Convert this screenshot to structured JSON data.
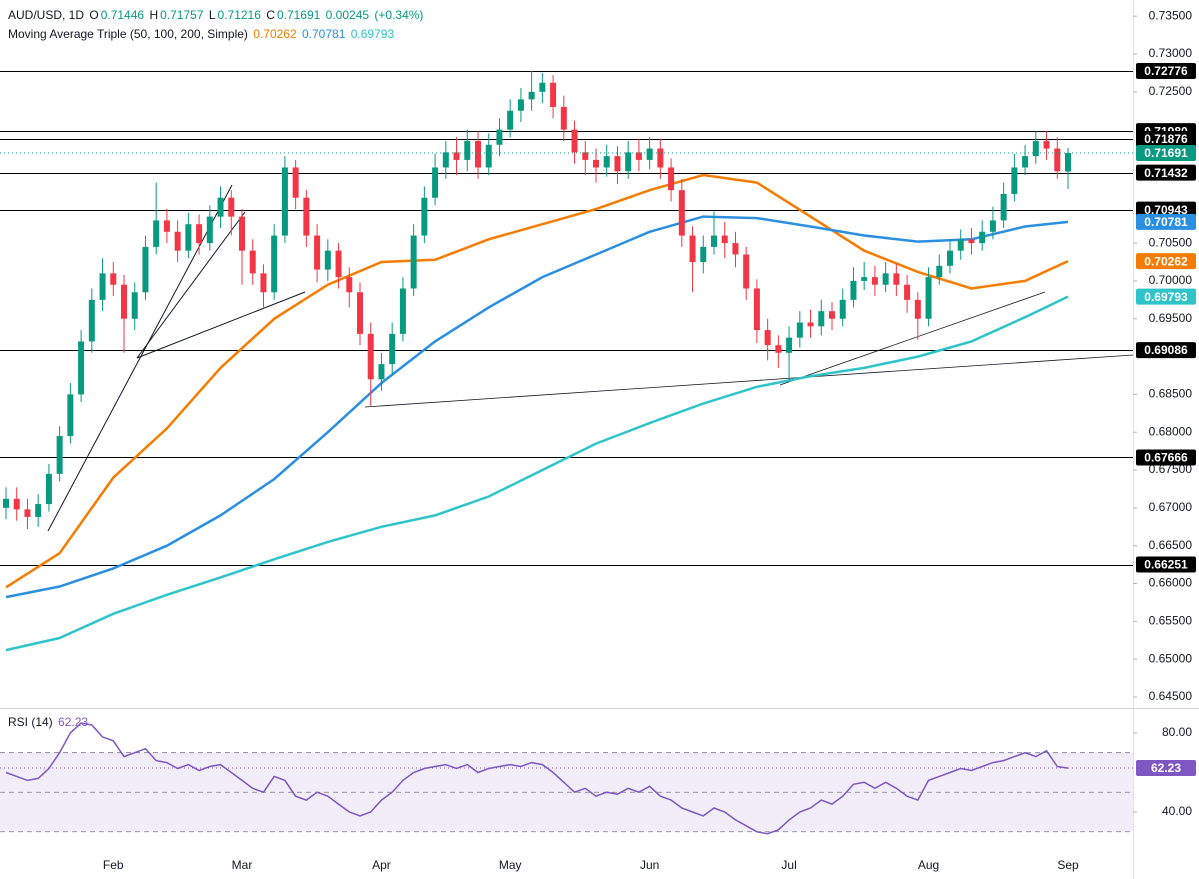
{
  "chart_data": [
    {
      "type": "candlestick",
      "title": "AUD/USD, 1D",
      "ohlc_labels": [
        "O",
        "H",
        "L",
        "C"
      ],
      "change": 0.00245,
      "change_label": "(+0.34%)",
      "categories": [
        null,
        null,
        null,
        null,
        null,
        null,
        null,
        null,
        null,
        null,
        "Feb",
        null,
        null,
        null,
        null,
        null,
        null,
        null,
        null,
        null,
        null,
        null,
        "Mar",
        null,
        null,
        null,
        null,
        null,
        null,
        null,
        null,
        null,
        null,
        null,
        null,
        "Apr",
        null,
        null,
        null,
        null,
        null,
        null,
        null,
        null,
        null,
        null,
        null,
        "May",
        null,
        null,
        null,
        null,
        null,
        null,
        null,
        null,
        null,
        null,
        null,
        null,
        "Jun",
        null,
        null,
        null,
        null,
        null,
        null,
        null,
        null,
        null,
        null,
        null,
        null,
        "Jul",
        null,
        null,
        null,
        null,
        null,
        null,
        null,
        null,
        null,
        null,
        null,
        null,
        "Aug",
        null,
        null,
        null,
        null,
        null,
        null,
        null,
        null,
        null,
        null,
        null,
        null,
        "Sep"
      ],
      "open": [
        0.67,
        0.6712,
        0.6698,
        0.6688,
        0.6705,
        0.6745,
        0.6795,
        0.685,
        0.692,
        0.6975,
        0.701,
        0.6995,
        0.695,
        0.6985,
        0.7045,
        0.708,
        0.7065,
        0.704,
        0.7075,
        0.705,
        0.7085,
        0.711,
        0.7085,
        0.704,
        0.701,
        0.6985,
        0.706,
        0.715,
        0.711,
        0.706,
        0.7015,
        0.704,
        0.7005,
        0.6985,
        0.693,
        0.687,
        0.689,
        0.693,
        0.699,
        0.706,
        0.711,
        0.715,
        0.717,
        0.716,
        0.7185,
        0.715,
        0.718,
        0.72,
        0.7225,
        0.724,
        0.725,
        0.7262,
        0.723,
        0.72,
        0.717,
        0.716,
        0.715,
        0.7165,
        0.7145,
        0.717,
        0.716,
        0.7175,
        0.715,
        0.712,
        0.706,
        0.7025,
        0.7045,
        0.706,
        0.705,
        0.7035,
        0.699,
        0.6935,
        0.6915,
        0.6905,
        0.6925,
        0.6945,
        0.694,
        0.696,
        0.695,
        0.6975,
        0.7,
        0.7005,
        0.6995,
        0.701,
        0.6995,
        0.6975,
        0.695,
        0.7005,
        0.702,
        0.704,
        0.7055,
        0.705,
        0.7065,
        0.708,
        0.7115,
        0.715,
        0.7165,
        0.7185,
        0.7175,
        0.71446
      ],
      "high": [
        0.6727,
        0.6727,
        0.6712,
        0.6718,
        0.6758,
        0.6808,
        0.6865,
        0.6935,
        0.699,
        0.703,
        0.7025,
        0.7008,
        0.6998,
        0.706,
        0.713,
        0.7095,
        0.708,
        0.709,
        0.7088,
        0.71,
        0.7125,
        0.712,
        0.7095,
        0.7055,
        0.7022,
        0.7075,
        0.7165,
        0.716,
        0.712,
        0.7075,
        0.7055,
        0.705,
        0.7018,
        0.6998,
        0.6945,
        0.6905,
        0.6945,
        0.7005,
        0.7075,
        0.7125,
        0.7168,
        0.7185,
        0.719,
        0.72,
        0.7198,
        0.7195,
        0.7215,
        0.724,
        0.7255,
        0.72776,
        0.7275,
        0.7272,
        0.7245,
        0.7212,
        0.7185,
        0.7175,
        0.718,
        0.7178,
        0.7185,
        0.7188,
        0.719,
        0.7188,
        0.7162,
        0.7135,
        0.7072,
        0.706,
        0.7092,
        0.7078,
        0.7065,
        0.7045,
        0.7002,
        0.695,
        0.6928,
        0.694,
        0.696,
        0.6962,
        0.6975,
        0.6972,
        0.699,
        0.7018,
        0.7025,
        0.702,
        0.7025,
        0.7022,
        0.7008,
        0.6985,
        0.7018,
        0.7035,
        0.7055,
        0.7068,
        0.707,
        0.708,
        0.7098,
        0.713,
        0.7168,
        0.718,
        0.7198,
        0.7198,
        0.719,
        0.71757
      ],
      "low": [
        0.6685,
        0.6683,
        0.6672,
        0.6675,
        0.6695,
        0.6735,
        0.6785,
        0.684,
        0.6905,
        0.696,
        0.698,
        0.6905,
        0.6935,
        0.6975,
        0.7035,
        0.705,
        0.7025,
        0.703,
        0.7035,
        0.704,
        0.707,
        0.706,
        0.6995,
        0.6995,
        0.6965,
        0.6975,
        0.705,
        0.7095,
        0.7045,
        0.6998,
        0.7,
        0.699,
        0.6965,
        0.6915,
        0.6835,
        0.6855,
        0.6875,
        0.692,
        0.698,
        0.705,
        0.71,
        0.7135,
        0.714,
        0.7145,
        0.7135,
        0.714,
        0.7165,
        0.719,
        0.721,
        0.7225,
        0.7235,
        0.7215,
        0.7185,
        0.7155,
        0.714,
        0.713,
        0.7138,
        0.7128,
        0.7135,
        0.7145,
        0.7148,
        0.7135,
        0.7105,
        0.7045,
        0.6985,
        0.701,
        0.7035,
        0.703,
        0.7018,
        0.6975,
        0.6918,
        0.6895,
        0.6885,
        0.6868,
        0.6912,
        0.6925,
        0.6928,
        0.6935,
        0.694,
        0.6965,
        0.6988,
        0.698,
        0.6985,
        0.698,
        0.6958,
        0.6922,
        0.694,
        0.6995,
        0.701,
        0.7028,
        0.7035,
        0.704,
        0.7055,
        0.707,
        0.7105,
        0.714,
        0.7155,
        0.716,
        0.7135,
        0.71216
      ],
      "close": [
        0.6712,
        0.6698,
        0.6688,
        0.6705,
        0.6745,
        0.6795,
        0.685,
        0.692,
        0.6975,
        0.701,
        0.6995,
        0.695,
        0.6985,
        0.7045,
        0.708,
        0.7065,
        0.704,
        0.7075,
        0.705,
        0.7085,
        0.711,
        0.7085,
        0.704,
        0.701,
        0.6985,
        0.706,
        0.715,
        0.711,
        0.706,
        0.7015,
        0.704,
        0.7005,
        0.6985,
        0.693,
        0.687,
        0.689,
        0.693,
        0.699,
        0.706,
        0.711,
        0.715,
        0.717,
        0.716,
        0.7185,
        0.715,
        0.718,
        0.72,
        0.7225,
        0.724,
        0.725,
        0.7262,
        0.723,
        0.72,
        0.717,
        0.716,
        0.715,
        0.7165,
        0.7145,
        0.717,
        0.716,
        0.7175,
        0.715,
        0.712,
        0.706,
        0.7025,
        0.7045,
        0.706,
        0.705,
        0.7035,
        0.699,
        0.6935,
        0.6915,
        0.6905,
        0.6925,
        0.6945,
        0.694,
        0.696,
        0.695,
        0.6975,
        0.7,
        0.7005,
        0.6995,
        0.701,
        0.6995,
        0.6975,
        0.695,
        0.7005,
        0.702,
        0.704,
        0.7055,
        0.705,
        0.7065,
        0.708,
        0.7115,
        0.715,
        0.7165,
        0.7185,
        0.7175,
        0.7145,
        0.71691
      ],
      "up_color": "#089981",
      "down_color": "#f23645",
      "ylim": [
        0.64354,
        0.73714
      ],
      "yticks": [
        {
          "value": 0.735,
          "label": "0.73500"
        },
        {
          "value": 0.73,
          "label": "0.73000"
        },
        {
          "value": 0.725,
          "label": "0.72500"
        },
        {
          "value": 0.705,
          "label": "0.70500"
        },
        {
          "value": 0.7,
          "label": "0.70000"
        },
        {
          "value": 0.695,
          "label": "0.69500"
        },
        {
          "value": 0.685,
          "label": "0.68500"
        },
        {
          "value": 0.68,
          "label": "0.68000"
        },
        {
          "value": 0.675,
          "label": "0.67500"
        },
        {
          "value": 0.67,
          "label": "0.67000"
        },
        {
          "value": 0.665,
          "label": "0.66500"
        },
        {
          "value": 0.66,
          "label": "0.66000"
        },
        {
          "value": 0.655,
          "label": "0.65500"
        },
        {
          "value": 0.65,
          "label": "0.65000"
        },
        {
          "value": 0.645,
          "label": "0.64500"
        }
      ],
      "levels": [
        0.72776,
        {
          "value": 0.7198,
          "label": "0.71980"
        },
        0.71876,
        0.71432,
        0.70943,
        0.69086,
        0.67666,
        0.66251
      ],
      "level_color": "#000000",
      "overlays": {
        "title": "Moving Average Triple (50, 100, 200, Simple)",
        "series": [
          {
            "color": "#f57c00",
            "x": [
              0,
              5,
              10,
              15,
              20,
              25,
              30,
              35,
              40,
              45,
              50,
              55,
              60,
              65,
              70,
              75,
              80,
              85,
              90,
              95,
              99
            ],
            "values": [
              0.6595,
              0.664,
              0.674,
              0.6805,
              0.6885,
              0.695,
              0.6995,
              0.7025,
              0.7028,
              0.7055,
              0.7075,
              0.7095,
              0.712,
              0.714,
              0.713,
              0.7085,
              0.704,
              0.7012,
              0.699,
              0.7,
              0.70262
            ]
          },
          {
            "color": "#2a8fe0",
            "x": [
              0,
              5,
              10,
              15,
              20,
              25,
              30,
              35,
              40,
              45,
              50,
              55,
              60,
              65,
              70,
              75,
              80,
              85,
              90,
              95,
              99
            ],
            "values": [
              0.6582,
              0.6596,
              0.662,
              0.665,
              0.669,
              0.6738,
              0.68,
              0.6865,
              0.692,
              0.6965,
              0.7005,
              0.7035,
              0.7065,
              0.7085,
              0.7083,
              0.7072,
              0.706,
              0.7052,
              0.7055,
              0.7072,
              0.70781
            ]
          },
          {
            "color": "#2ec4c9",
            "x": [
              0,
              5,
              10,
              15,
              20,
              25,
              30,
              35,
              40,
              45,
              50,
              55,
              60,
              65,
              70,
              75,
              80,
              85,
              90,
              95,
              99
            ],
            "values": [
              0.6512,
              0.6528,
              0.656,
              0.6585,
              0.6608,
              0.6632,
              0.6655,
              0.6675,
              0.669,
              0.6715,
              0.675,
              0.6785,
              0.6812,
              0.6838,
              0.686,
              0.6874,
              0.6885,
              0.69,
              0.692,
              0.6952,
              0.69793
            ]
          }
        ]
      }
    },
    {
      "type": "line",
      "title": "RSI (14)",
      "color": "#7e57c2",
      "values": [
        60,
        58,
        56,
        57,
        62,
        70,
        80,
        85,
        84,
        78,
        76,
        68,
        70,
        72,
        66,
        65,
        62,
        64,
        61,
        63,
        64,
        60,
        56,
        52,
        50,
        58,
        56,
        48,
        46,
        50,
        48,
        44,
        40,
        38,
        40,
        46,
        50,
        56,
        60,
        62,
        63,
        64,
        62,
        64,
        60,
        62,
        63,
        64,
        63,
        65,
        64,
        60,
        55,
        50,
        52,
        48,
        50,
        49,
        52,
        50,
        53,
        48,
        46,
        42,
        40,
        38,
        42,
        40,
        36,
        33,
        30,
        29,
        31,
        36,
        40,
        42,
        46,
        44,
        48,
        54,
        55,
        52,
        55,
        52,
        48,
        46,
        56,
        58,
        60,
        62,
        61,
        63,
        65,
        66,
        68,
        70,
        68,
        71,
        63,
        62.23
      ],
      "ylim": [
        6.1,
        91.6
      ],
      "yticks": [
        {
          "value": 80,
          "label": "80.00"
        },
        {
          "value": 40,
          "label": "40.00"
        }
      ],
      "levels": [
        70,
        50,
        30
      ]
    }
  ]
}
